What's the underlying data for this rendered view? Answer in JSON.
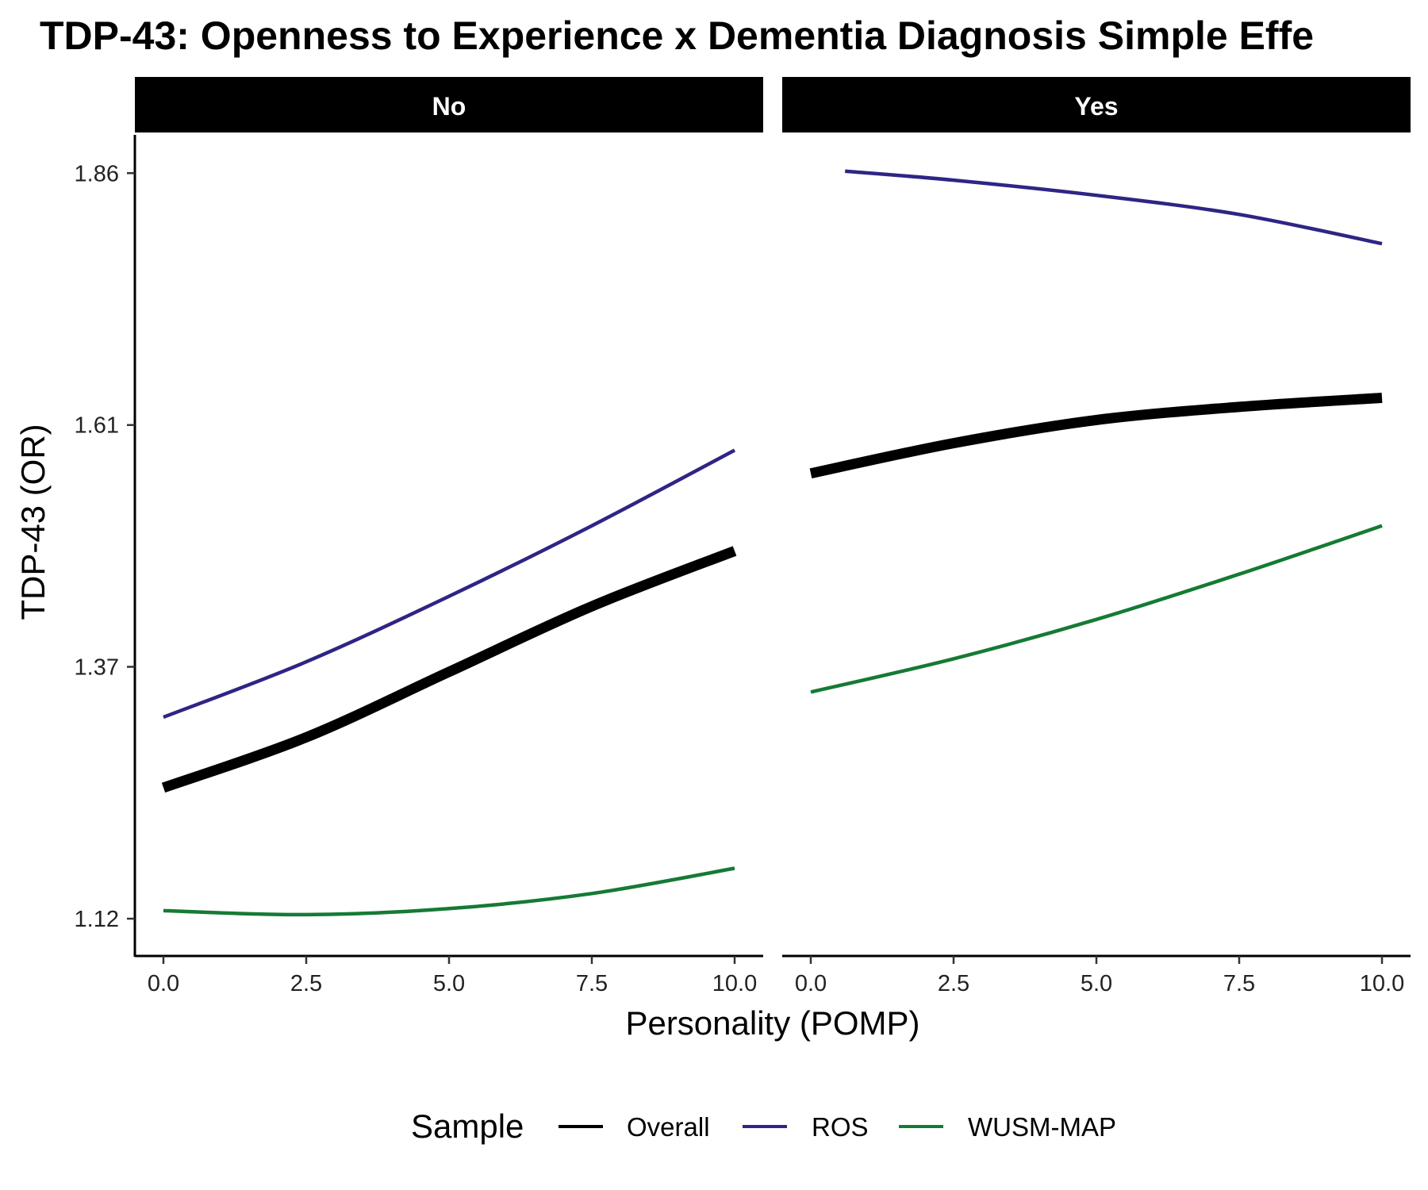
{
  "chart_data": {
    "type": "line",
    "title": "TDP-43: Openness to Experience x Dementia Diagnosis Simple Effe",
    "xlabel": "Personality (POMP)",
    "ylabel": "TDP-43 (OR)",
    "xlim": [
      -0.5,
      10.5
    ],
    "ylim": [
      1.083,
      1.898
    ],
    "x_ticks": [
      0,
      2.5,
      5,
      7.5,
      10
    ],
    "x_tick_labels": [
      "0.0",
      "2.5",
      "5.0",
      "7.5",
      "10.0"
    ],
    "y_ticks": [
      1.12,
      1.37,
      1.61,
      1.86
    ],
    "y_tick_labels": [
      "1.12",
      "1.37",
      "1.61",
      "1.86"
    ],
    "grid": false,
    "legend": {
      "title": "Sample",
      "position": "bottom",
      "entries": [
        "Overall",
        "ROS",
        "WUSM-MAP"
      ]
    },
    "colors": {
      "Overall": "#000000",
      "ROS": "#2e2585",
      "WUSM-MAP": "#157a35"
    },
    "panels": [
      {
        "label": "No",
        "series": [
          {
            "name": "Overall",
            "x": [
              0,
              2.5,
              5,
              7.5,
              10
            ],
            "y": [
              1.25,
              1.3,
              1.365,
              1.43,
              1.485
            ]
          },
          {
            "name": "ROS",
            "x": [
              0,
              2.5,
              5,
              7.5,
              10
            ],
            "y": [
              1.32,
              1.375,
              1.44,
              1.51,
              1.585
            ]
          },
          {
            "name": "WUSM-MAP",
            "x": [
              0,
              2.5,
              5,
              7.5,
              10
            ],
            "y": [
              1.128,
              1.124,
              1.13,
              1.145,
              1.17
            ]
          }
        ]
      },
      {
        "label": "Yes",
        "series": [
          {
            "name": "Overall",
            "x": [
              0,
              2.5,
              5,
              7.5,
              10
            ],
            "y": [
              1.562,
              1.592,
              1.615,
              1.628,
              1.637
            ]
          },
          {
            "name": "ROS",
            "x": [
              0.6,
              2.5,
              5,
              7.5,
              10
            ],
            "y": [
              1.862,
              1.853,
              1.838,
              1.819,
              1.79
            ]
          },
          {
            "name": "WUSM-MAP",
            "x": [
              0,
              2.5,
              5,
              7.5,
              10
            ],
            "y": [
              1.345,
              1.378,
              1.417,
              1.462,
              1.51
            ]
          }
        ]
      }
    ]
  }
}
